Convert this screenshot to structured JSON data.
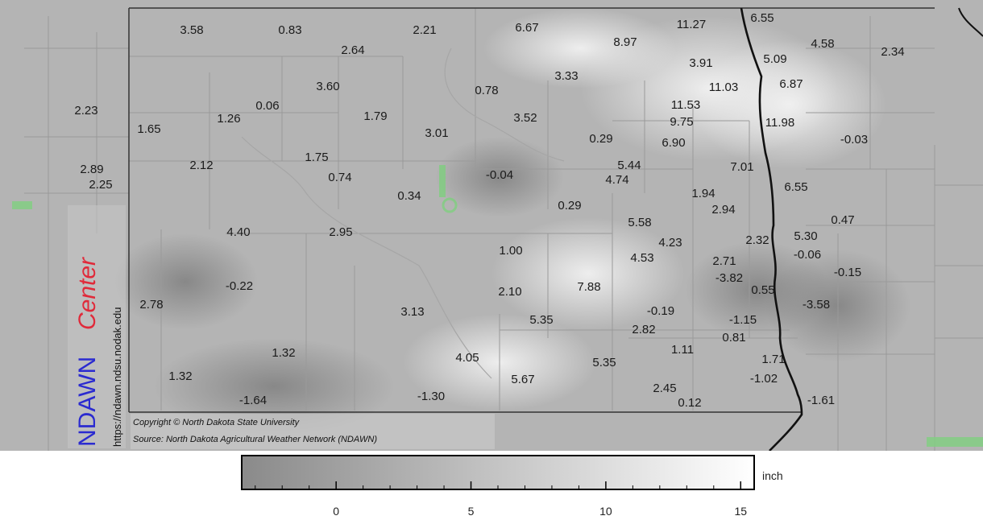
{
  "map": {
    "copyright_line": "Copyright © North Dakota State University",
    "source_line": "Source: North Dakota Agricultural Weather Network (NDAWN)",
    "logo": {
      "name": "NDAWN",
      "word": "Center",
      "url": "https://ndawn.ndsu.nodak.edu"
    },
    "station_values": [
      "3.58",
      "0.83",
      "2.64",
      "2.21",
      "6.67",
      "8.97",
      "11.27",
      "6.55",
      "4.58",
      "2.34",
      "5.09",
      "3.91",
      "3.33",
      "6.87",
      "11.03",
      "0.78",
      "3.60",
      "2.23",
      "1.26",
      "0.06",
      "1.79",
      "3.52",
      "11.53",
      "9.75",
      "11.98",
      "1.65",
      "3.01",
      "0.29",
      "6.90",
      "-0.03",
      "2.12",
      "1.75",
      "5.44",
      "7.01",
      "2.89",
      "4.74",
      "2.25",
      "0.74",
      "-0.04",
      "0.34",
      "1.94",
      "6.55",
      "0.29",
      "2.94",
      "5.58",
      "0.47",
      "4.40",
      "2.95",
      "4.23",
      "2.32",
      "5.30",
      "1.00",
      "4.53",
      "2.71",
      "-0.06",
      "-0.15",
      "-3.82",
      "-0.22",
      "7.88",
      "2.10",
      "0.55",
      "2.78",
      "-0.19",
      "-3.58",
      "3.13",
      "5.35",
      "-1.15",
      "2.82",
      "0.81",
      "1.32",
      "1.11",
      "4.05",
      "5.35",
      "1.71",
      "1.32",
      "5.67",
      "-1.02",
      "2.45",
      "-1.30",
      "-1.64",
      "-1.61",
      "0.12"
    ]
  },
  "legend": {
    "unit": "inch",
    "min": -3.5,
    "max": 15.5,
    "tick_labels": [
      "0",
      "5",
      "10",
      "15"
    ],
    "color_low": "#8a8a8a",
    "color_high": "#ffffff"
  }
}
